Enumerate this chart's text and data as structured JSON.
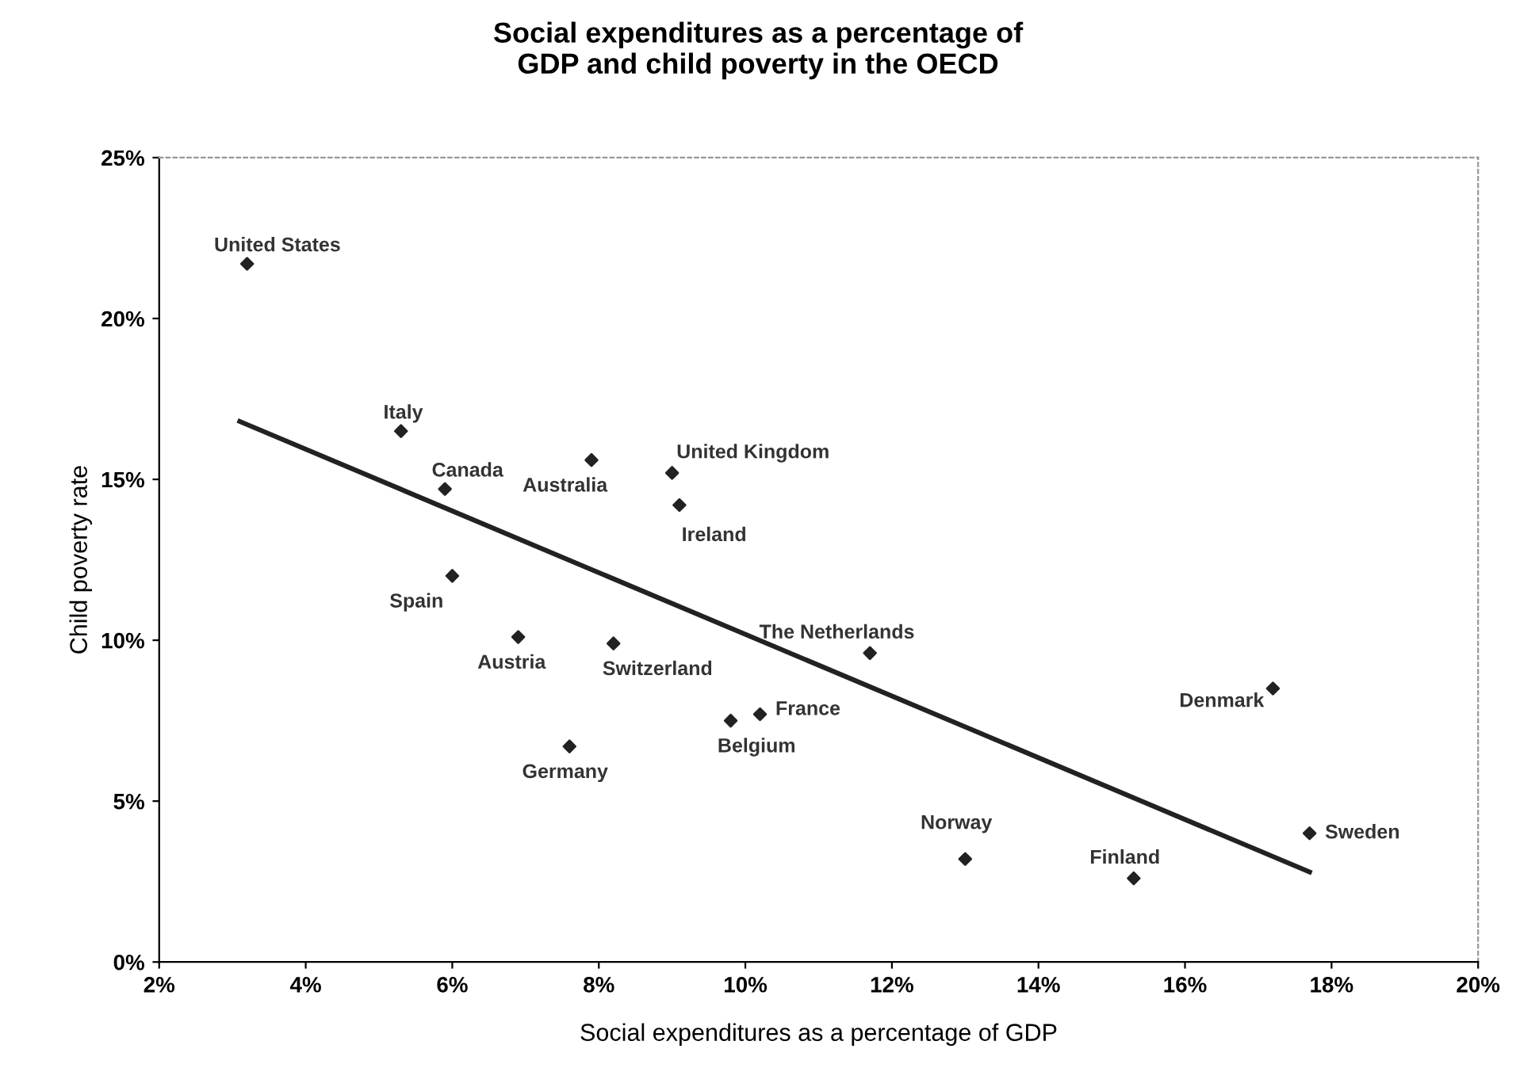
{
  "chart_data": {
    "type": "scatter",
    "title": "Social expenditures as a percentage of\nGDP and child poverty in the OECD",
    "xlabel": "Social expenditures as a percentage of GDP",
    "ylabel": "Child poverty rate",
    "xlim": [
      2,
      20
    ],
    "xticks": [
      {
        "value": 2,
        "label": "2%"
      },
      {
        "value": 4,
        "label": "4%"
      },
      {
        "value": 6,
        "label": "6%"
      },
      {
        "value": 8,
        "label": "8%"
      },
      {
        "value": 10,
        "label": "10%"
      },
      {
        "value": 12,
        "label": "12%"
      },
      {
        "value": 14,
        "label": "14%"
      },
      {
        "value": 16,
        "label": "16%"
      },
      {
        "value": 18,
        "label": "18%"
      },
      {
        "value": 20,
        "label": "20%"
      }
    ],
    "ylim": [
      0,
      25
    ],
    "yticks": [
      {
        "value": 0,
        "label": "0%"
      },
      {
        "value": 5,
        "label": "5%"
      },
      {
        "value": 10,
        "label": "10%"
      },
      {
        "value": 15,
        "label": "15%"
      },
      {
        "value": 20,
        "label": "20%"
      },
      {
        "value": 25,
        "label": "25%"
      }
    ],
    "grid": false,
    "legend": false,
    "series": [
      {
        "color": "#222222",
        "marker": "diamond",
        "x": [
          3.2,
          5.3,
          5.9,
          7.9,
          9.0,
          9.1,
          6.0,
          6.9,
          8.2,
          7.6,
          9.8,
          10.2,
          11.7,
          17.2,
          17.7,
          13.0,
          15.3
        ],
        "values": [
          21.7,
          16.5,
          14.7,
          15.6,
          15.2,
          14.2,
          12.0,
          10.1,
          9.9,
          6.7,
          7.5,
          7.7,
          9.6,
          8.5,
          4.0,
          3.2,
          2.6
        ]
      },
      {
        "type": "line",
        "color": "#222222",
        "marker": "none",
        "x": [
          3.1,
          17.7
        ],
        "values": [
          16.8,
          2.8
        ]
      }
    ],
    "annotations": [
      {
        "text": "United States",
        "x": 3.2,
        "y": 21.7
      },
      {
        "text": "Italy",
        "x": 5.3,
        "y": 16.5
      },
      {
        "text": "Canada",
        "x": 5.9,
        "y": 14.7
      },
      {
        "text": "Australia",
        "x": 7.9,
        "y": 15.6
      },
      {
        "text": "United Kingdom",
        "x": 9.0,
        "y": 15.2
      },
      {
        "text": "Ireland",
        "x": 9.1,
        "y": 14.2
      },
      {
        "text": "Spain",
        "x": 6.0,
        "y": 12.0
      },
      {
        "text": "Austria",
        "x": 6.9,
        "y": 10.1
      },
      {
        "text": "Switzerland",
        "x": 8.2,
        "y": 9.9
      },
      {
        "text": "Germany",
        "x": 7.6,
        "y": 6.7
      },
      {
        "text": "Belgium",
        "x": 9.8,
        "y": 7.5
      },
      {
        "text": "France",
        "x": 10.2,
        "y": 7.7
      },
      {
        "text": "The Netherlands",
        "x": 11.7,
        "y": 9.6
      },
      {
        "text": "Denmark",
        "x": 17.2,
        "y": 8.5
      },
      {
        "text": "Sweden",
        "x": 17.7,
        "y": 4.0
      },
      {
        "text": "Norway",
        "x": 13.0,
        "y": 3.2
      },
      {
        "text": "Finland",
        "x": 15.3,
        "y": 2.6
      }
    ]
  }
}
